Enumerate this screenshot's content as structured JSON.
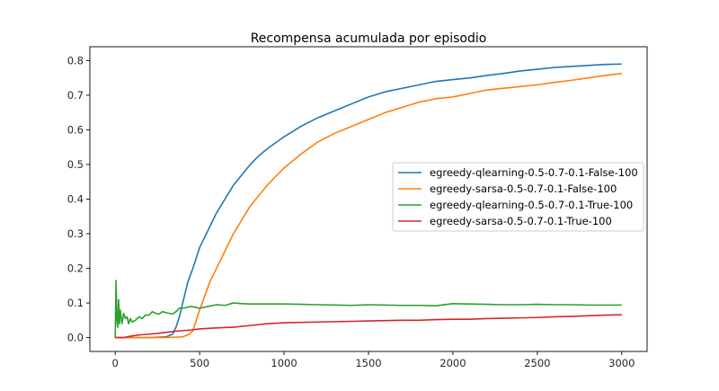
{
  "chart_data": {
    "type": "line",
    "title": "Recompensa acumulada por episodio",
    "xlabel": "",
    "ylabel": "",
    "xlim": [
      -150,
      3150
    ],
    "ylim": [
      -0.04,
      0.84
    ],
    "xticks": [
      0,
      500,
      1000,
      1500,
      2000,
      2500,
      3000
    ],
    "yticks": [
      0.0,
      0.1,
      0.2,
      0.3,
      0.4,
      0.5,
      0.6,
      0.7,
      0.8
    ],
    "ytick_labels": [
      "0.0",
      "0.1",
      "0.2",
      "0.3",
      "0.4",
      "0.5",
      "0.6",
      "0.7",
      "0.8"
    ],
    "grid": false,
    "legend_position": "center-right",
    "series": [
      {
        "name": "egreedy-qlearning-0.5-0.7-0.1-False-100",
        "color": "#1f77b4",
        "x": [
          0,
          100,
          200,
          300,
          340,
          360,
          380,
          400,
          430,
          460,
          500,
          550,
          600,
          650,
          700,
          750,
          800,
          850,
          900,
          1000,
          1100,
          1200,
          1300,
          1400,
          1500,
          1600,
          1700,
          1800,
          1900,
          2000,
          2100,
          2200,
          2300,
          2400,
          2500,
          2600,
          2700,
          2800,
          2900,
          3000
        ],
        "y": [
          0,
          0,
          0,
          0.002,
          0.01,
          0.03,
          0.06,
          0.1,
          0.16,
          0.2,
          0.26,
          0.31,
          0.36,
          0.4,
          0.44,
          0.47,
          0.5,
          0.525,
          0.545,
          0.58,
          0.61,
          0.635,
          0.655,
          0.675,
          0.695,
          0.71,
          0.72,
          0.73,
          0.74,
          0.745,
          0.75,
          0.757,
          0.763,
          0.77,
          0.775,
          0.78,
          0.783,
          0.786,
          0.789,
          0.79
        ]
      },
      {
        "name": "egreedy-sarsa-0.5-0.7-0.1-False-100",
        "color": "#ff7f0e",
        "x": [
          0,
          100,
          200,
          300,
          400,
          440,
          460,
          480,
          500,
          530,
          560,
          600,
          650,
          700,
          750,
          800,
          850,
          900,
          950,
          1000,
          1100,
          1200,
          1300,
          1400,
          1500,
          1600,
          1700,
          1800,
          1900,
          2000,
          2100,
          2200,
          2300,
          2400,
          2500,
          2600,
          2700,
          2800,
          2900,
          3000
        ],
        "y": [
          0,
          0,
          0,
          0,
          0.002,
          0.01,
          0.02,
          0.05,
          0.08,
          0.12,
          0.16,
          0.2,
          0.25,
          0.3,
          0.34,
          0.38,
          0.41,
          0.44,
          0.465,
          0.49,
          0.53,
          0.565,
          0.59,
          0.61,
          0.63,
          0.65,
          0.665,
          0.68,
          0.69,
          0.695,
          0.705,
          0.715,
          0.72,
          0.725,
          0.73,
          0.737,
          0.743,
          0.75,
          0.757,
          0.763
        ]
      },
      {
        "name": "egreedy-qlearning-0.5-0.7-0.1-True-100",
        "color": "#2ca02c",
        "x": [
          0,
          5,
          10,
          15,
          20,
          25,
          30,
          40,
          50,
          60,
          70,
          80,
          90,
          100,
          120,
          140,
          160,
          180,
          200,
          220,
          240,
          260,
          280,
          300,
          320,
          340,
          360,
          380,
          400,
          450,
          500,
          550,
          600,
          650,
          700,
          750,
          800,
          900,
          1000,
          1100,
          1200,
          1300,
          1400,
          1500,
          1600,
          1700,
          1800,
          1900,
          2000,
          2100,
          2200,
          2300,
          2400,
          2500,
          2600,
          2700,
          2800,
          2900,
          3000
        ],
        "y": [
          0,
          0.165,
          0.05,
          0.03,
          0.11,
          0.04,
          0.08,
          0.04,
          0.07,
          0.055,
          0.06,
          0.04,
          0.055,
          0.045,
          0.05,
          0.06,
          0.055,
          0.065,
          0.065,
          0.075,
          0.07,
          0.068,
          0.075,
          0.072,
          0.07,
          0.068,
          0.075,
          0.085,
          0.085,
          0.09,
          0.085,
          0.09,
          0.095,
          0.093,
          0.1,
          0.098,
          0.097,
          0.097,
          0.097,
          0.096,
          0.095,
          0.094,
          0.093,
          0.095,
          0.094,
          0.093,
          0.093,
          0.092,
          0.098,
          0.097,
          0.096,
          0.095,
          0.095,
          0.096,
          0.095,
          0.095,
          0.094,
          0.094,
          0.094
        ]
      },
      {
        "name": "egreedy-sarsa-0.5-0.7-0.1-True-100",
        "color": "#d62728",
        "x": [
          0,
          50,
          100,
          150,
          200,
          250,
          300,
          350,
          400,
          450,
          500,
          600,
          700,
          800,
          900,
          1000,
          1100,
          1200,
          1300,
          1400,
          1500,
          1600,
          1700,
          1800,
          1900,
          2000,
          2100,
          2200,
          2300,
          2400,
          2500,
          2600,
          2700,
          2800,
          2900,
          3000
        ],
        "y": [
          0,
          0,
          0.005,
          0.008,
          0.01,
          0.012,
          0.015,
          0.018,
          0.02,
          0.022,
          0.025,
          0.028,
          0.03,
          0.035,
          0.04,
          0.043,
          0.044,
          0.045,
          0.046,
          0.047,
          0.048,
          0.049,
          0.05,
          0.05,
          0.052,
          0.053,
          0.053,
          0.055,
          0.056,
          0.057,
          0.058,
          0.06,
          0.061,
          0.063,
          0.065,
          0.066
        ]
      }
    ]
  }
}
